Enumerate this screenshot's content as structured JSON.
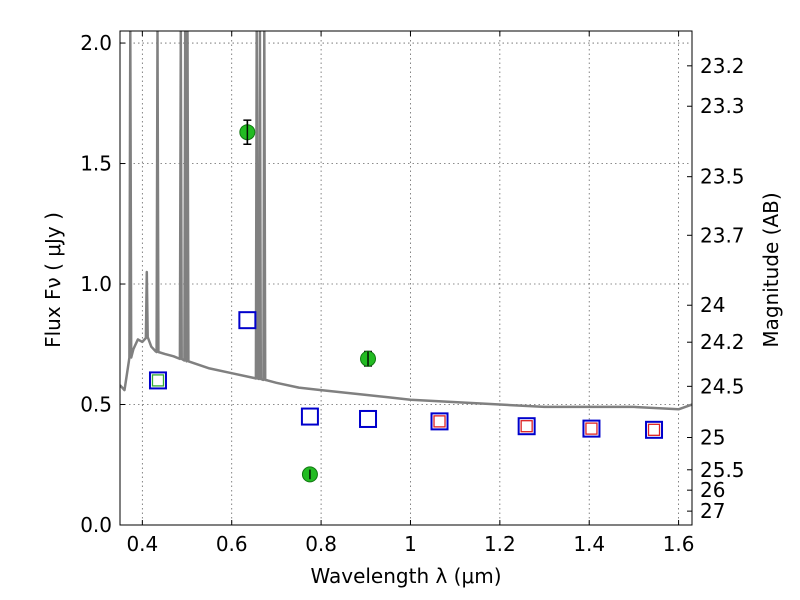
{
  "chart_data": {
    "type": "scatter",
    "xlabel": "Wavelength  λ (μm)",
    "ylabel": "Flux  Fν  ( μJy )",
    "ylabel_right": "Magnitude (AB)",
    "xlim": [
      0.35,
      1.63
    ],
    "ylim": [
      0.0,
      2.05
    ],
    "grid": true,
    "x_ticks": [
      {
        "value": 0.4,
        "label": "0.4"
      },
      {
        "value": 0.6,
        "label": "0.6"
      },
      {
        "value": 0.8,
        "label": "0.8"
      },
      {
        "value": 1.0,
        "label": "1"
      },
      {
        "value": 1.2,
        "label": "1.2"
      },
      {
        "value": 1.4,
        "label": "1.4"
      },
      {
        "value": 1.6,
        "label": "1.6"
      }
    ],
    "y_ticks": [
      {
        "value": 0.0,
        "label": "0.0"
      },
      {
        "value": 0.5,
        "label": "0.5"
      },
      {
        "value": 1.0,
        "label": "1.0"
      },
      {
        "value": 1.5,
        "label": "1.5"
      },
      {
        "value": 2.0,
        "label": "2.0"
      }
    ],
    "mag_ticks": [
      {
        "mag": 23.2,
        "label": "23.2"
      },
      {
        "mag": 23.3,
        "label": "23.3"
      },
      {
        "mag": 23.5,
        "label": "23.5"
      },
      {
        "mag": 23.7,
        "label": "23.7"
      },
      {
        "mag": 24.0,
        "label": "24"
      },
      {
        "mag": 24.2,
        "label": "24.2"
      },
      {
        "mag": 24.5,
        "label": "24.5"
      },
      {
        "mag": 25.0,
        "label": "25"
      },
      {
        "mag": 25.5,
        "label": "25.5"
      },
      {
        "mag": 26.0,
        "label": "26"
      },
      {
        "mag": 27.0,
        "label": "27"
      }
    ],
    "colors": {
      "model": "#808080",
      "observed": "#22bb22",
      "model_photometry": "#0000cc",
      "inner_square_red": "#dd2222",
      "inner_square_green": "#33aa33"
    },
    "model_spectrum": {
      "continuum": [
        [
          0.35,
          0.58
        ],
        [
          0.36,
          0.56
        ],
        [
          0.37,
          0.68
        ],
        [
          0.38,
          0.73
        ],
        [
          0.39,
          0.77
        ],
        [
          0.4,
          0.76
        ],
        [
          0.41,
          0.78
        ],
        [
          0.42,
          0.74
        ],
        [
          0.43,
          0.72
        ],
        [
          0.45,
          0.71
        ],
        [
          0.47,
          0.7
        ],
        [
          0.5,
          0.68
        ],
        [
          0.55,
          0.65
        ],
        [
          0.6,
          0.63
        ],
        [
          0.65,
          0.61
        ],
        [
          0.68,
          0.6
        ],
        [
          0.7,
          0.59
        ],
        [
          0.75,
          0.57
        ],
        [
          0.8,
          0.56
        ],
        [
          0.85,
          0.55
        ],
        [
          0.9,
          0.54
        ],
        [
          0.95,
          0.53
        ],
        [
          1.0,
          0.52
        ],
        [
          1.1,
          0.51
        ],
        [
          1.2,
          0.5
        ],
        [
          1.3,
          0.49
        ],
        [
          1.4,
          0.49
        ],
        [
          1.5,
          0.49
        ],
        [
          1.6,
          0.48
        ],
        [
          1.63,
          0.5
        ]
      ],
      "emission_lines": [
        {
          "x": 0.373,
          "peak": 2.05
        },
        {
          "x": 0.41,
          "peak": 1.05
        },
        {
          "x": 0.434,
          "peak": 2.05
        },
        {
          "x": 0.486,
          "peak": 2.05
        },
        {
          "x": 0.496,
          "peak": 2.05
        },
        {
          "x": 0.501,
          "peak": 2.05
        },
        {
          "x": 0.656,
          "peak": 2.05
        },
        {
          "x": 0.663,
          "peak": 2.05
        },
        {
          "x": 0.673,
          "peak": 2.05
        }
      ]
    },
    "series": [
      {
        "name": "observed",
        "marker": "circle",
        "points": [
          {
            "x": 0.635,
            "y": 1.63,
            "err": 0.05
          },
          {
            "x": 0.775,
            "y": 0.21,
            "err": 0.02
          },
          {
            "x": 0.905,
            "y": 0.69,
            "err": 0.03
          }
        ]
      },
      {
        "name": "model_photometry",
        "marker": "square",
        "points": [
          {
            "x": 0.435,
            "y": 0.6,
            "inner": "green"
          },
          {
            "x": 0.635,
            "y": 0.85,
            "inner": null
          },
          {
            "x": 0.775,
            "y": 0.45,
            "inner": null
          },
          {
            "x": 0.905,
            "y": 0.44,
            "inner": null
          },
          {
            "x": 1.065,
            "y": 0.43,
            "inner": "red"
          },
          {
            "x": 1.26,
            "y": 0.41,
            "inner": "red"
          },
          {
            "x": 1.405,
            "y": 0.4,
            "inner": "red"
          },
          {
            "x": 1.545,
            "y": 0.395,
            "inner": "red"
          }
        ]
      }
    ]
  }
}
